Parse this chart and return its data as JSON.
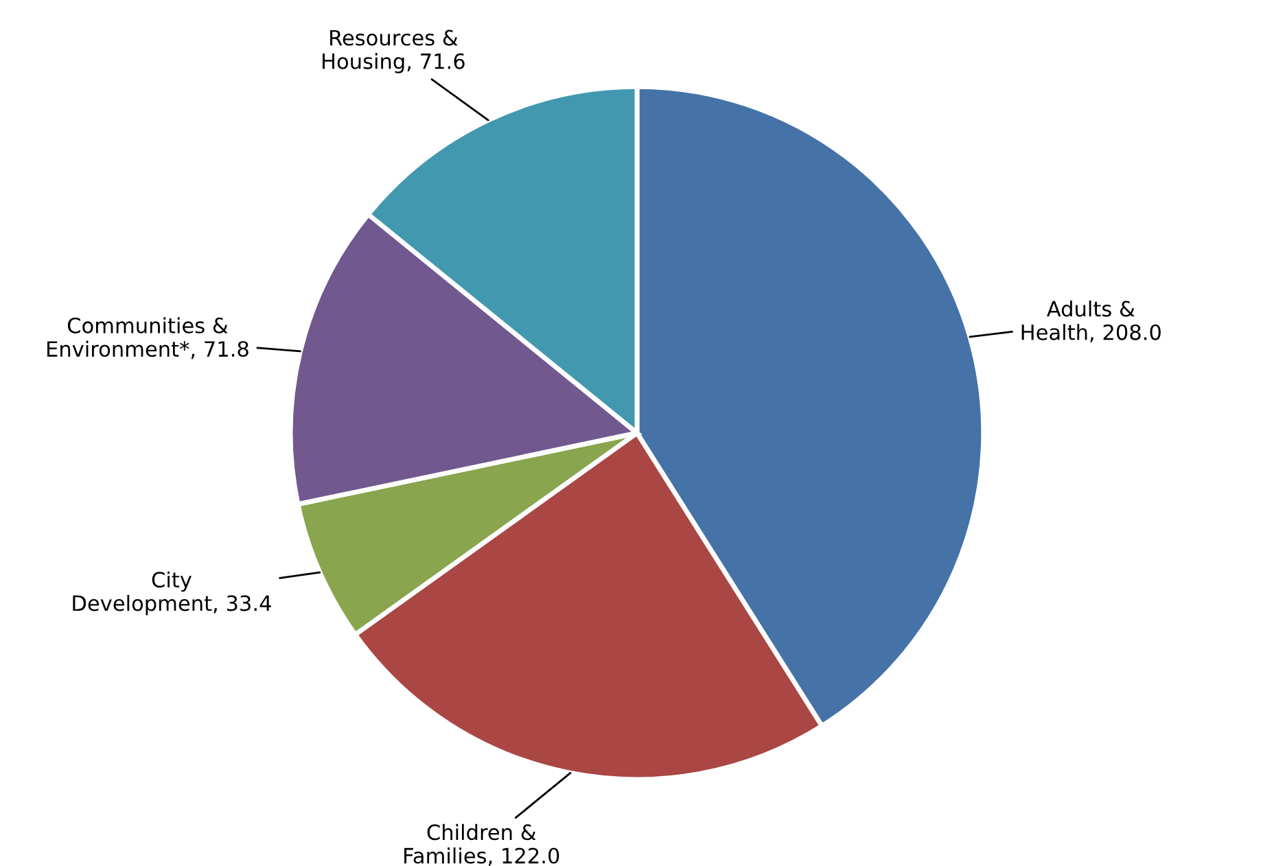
{
  "chart_data": {
    "type": "pie",
    "categories": [
      "Adults & Health",
      "Children & Families",
      "City Development",
      "Communities & Environment*",
      "Resources & Housing"
    ],
    "values": [
      208.0,
      122.0,
      33.4,
      71.8,
      71.6
    ],
    "value_labels": [
      ", 208.0",
      ", 122.0",
      ", 33.4",
      ", 71.8",
      ", 71.6"
    ],
    "colors": [
      "#4572a7",
      "#aa4643",
      "#89a54e",
      "#71588f",
      "#4198af"
    ]
  }
}
